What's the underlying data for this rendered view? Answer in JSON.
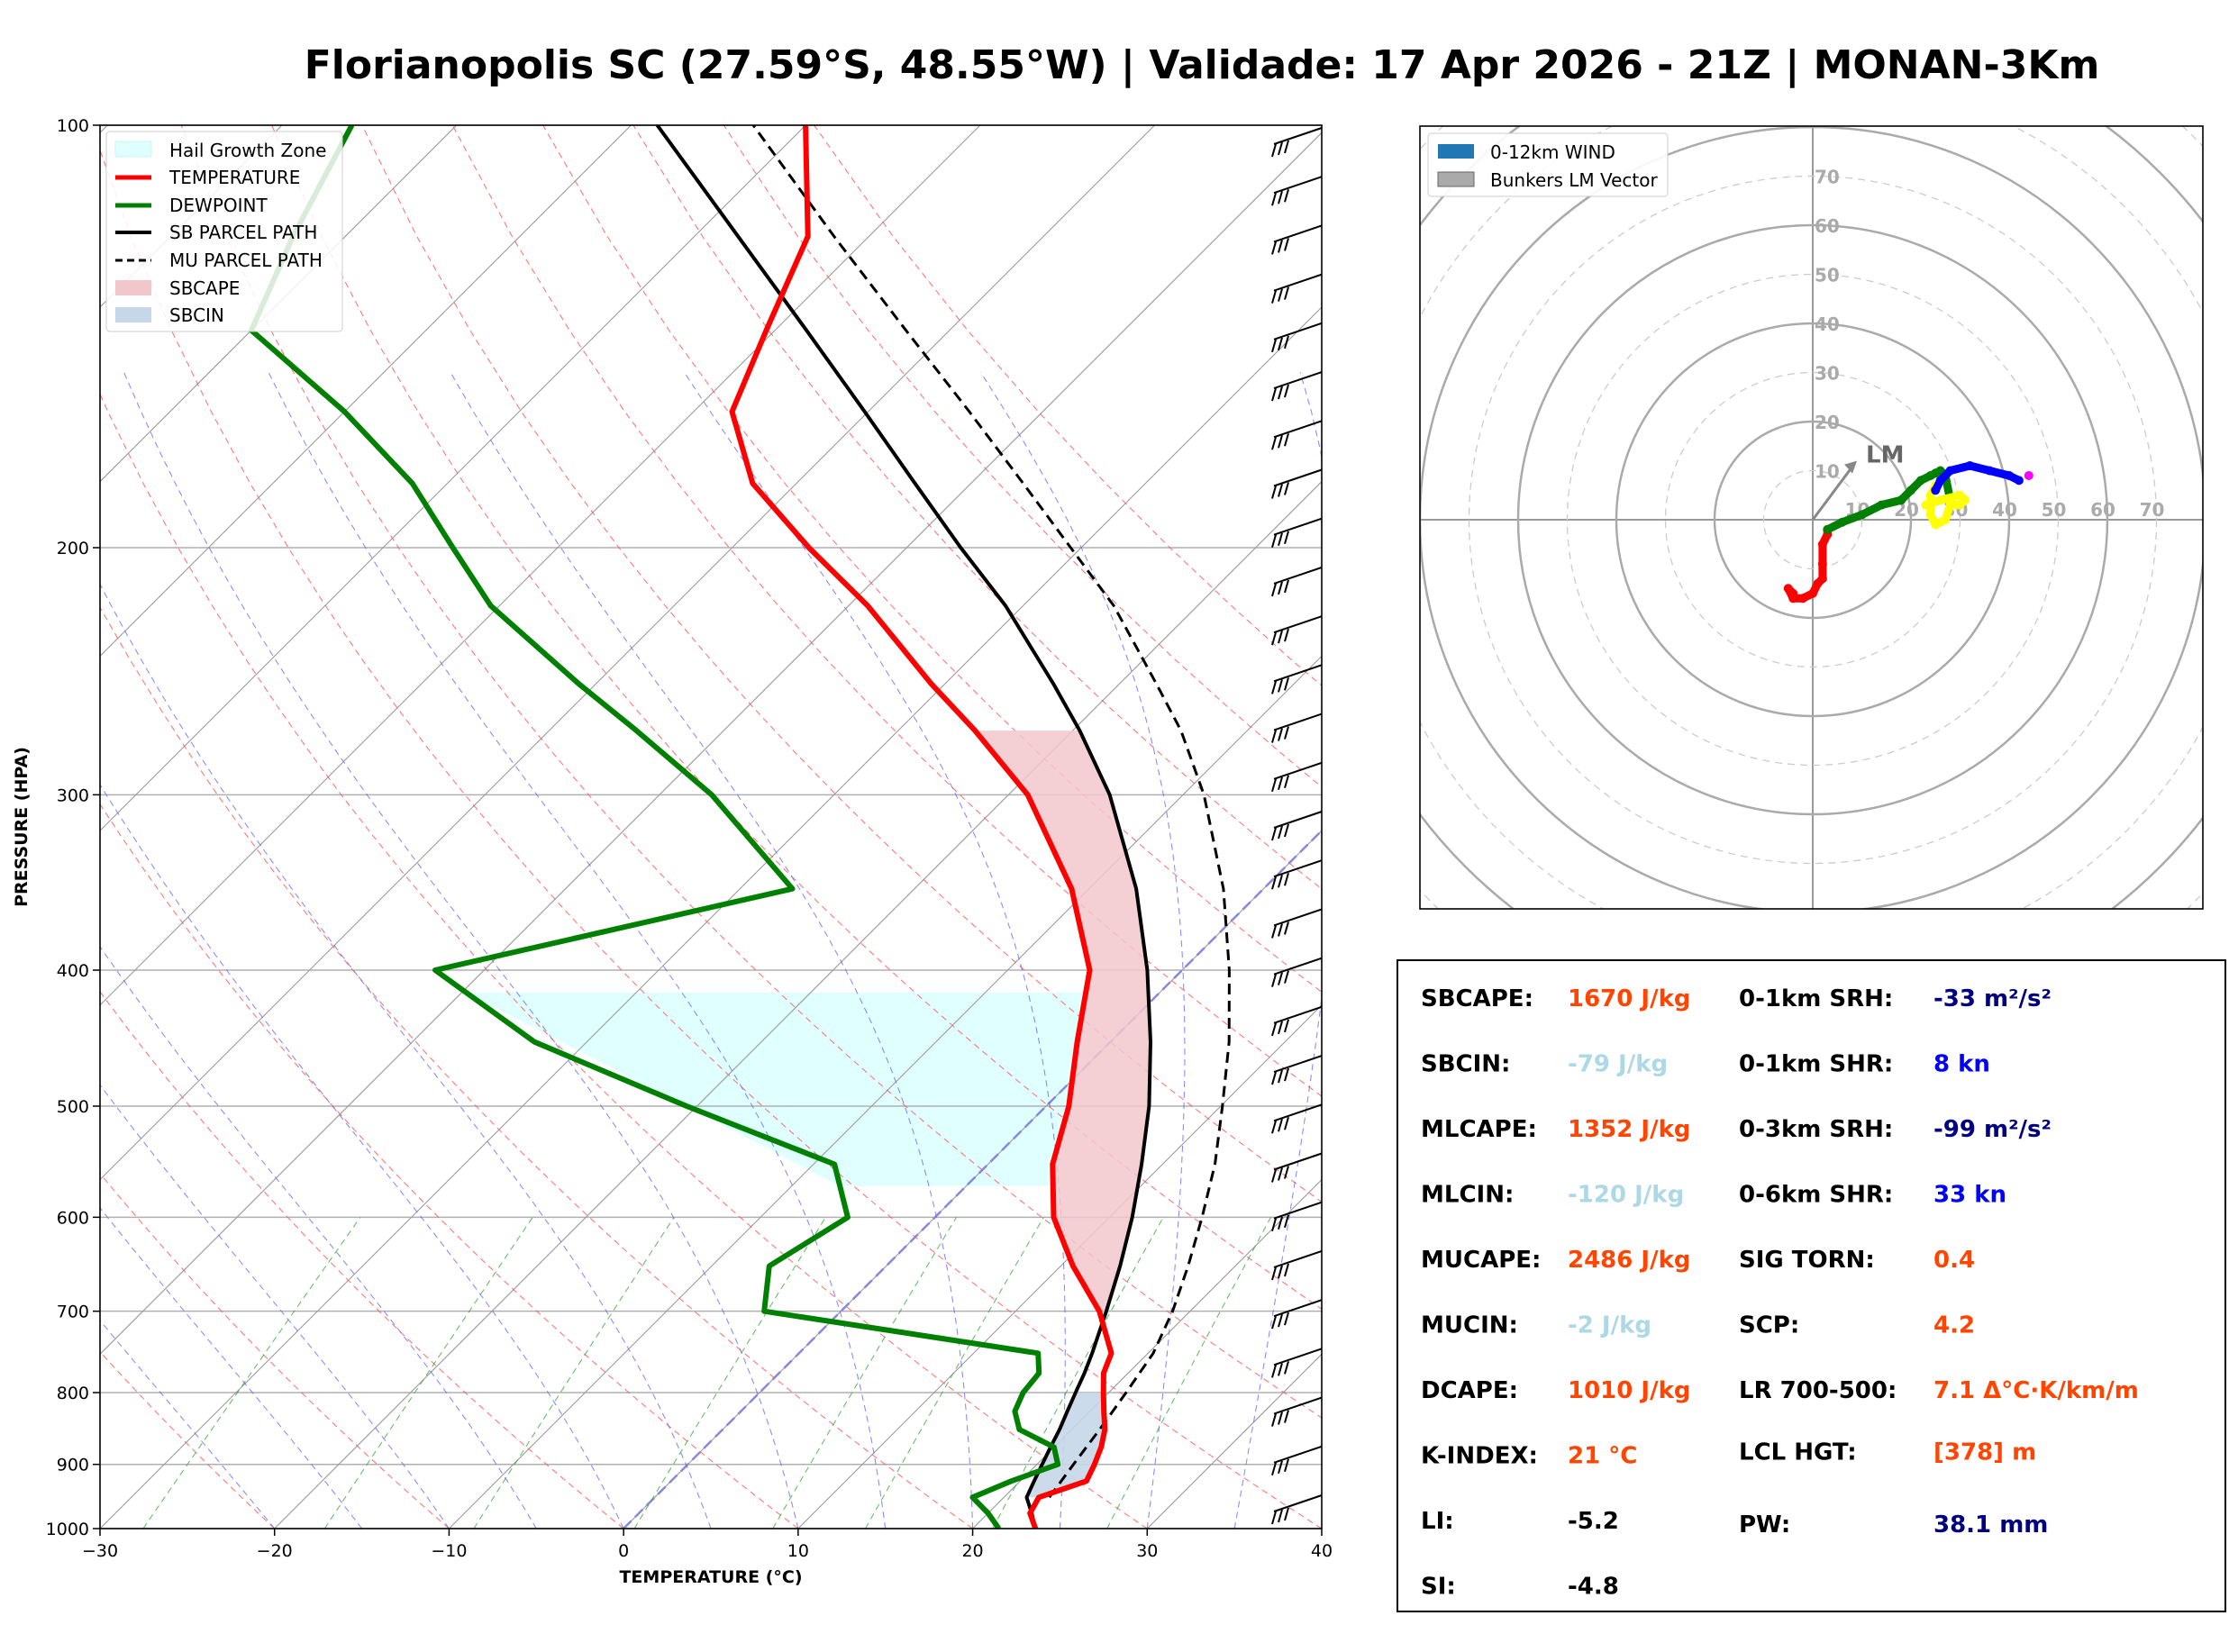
{
  "title": "Florianopolis SC (27.59°S, 48.55°W) | Validade: 17 Apr 2026 - 21Z | MONAN-3Km",
  "colors": {
    "temperature": "#ff0000",
    "dewpoint": "#008000",
    "sb_parcel": "#000000",
    "sbcape": "#f2c7cc",
    "sbcin": "#c5d7e8",
    "hail": "#e0ffff"
  },
  "chart_data": [
    {
      "type": "line",
      "name": "skew-t",
      "xlabel": "TEMPERATURE (°C)",
      "ylabel": "PRESSURE (HPA)",
      "xlim": [
        -30,
        40
      ],
      "ylim": [
        1000,
        100
      ],
      "skew": 45,
      "xticks": [
        "−30",
        "−20",
        "−10",
        "0",
        "10",
        "20",
        "30",
        "40"
      ],
      "xtick_values": [
        -30,
        -20,
        -10,
        0,
        10,
        20,
        30,
        40
      ],
      "yticks": [
        "100",
        "200",
        "300",
        "400",
        "500",
        "600",
        "700",
        "800",
        "900",
        "1000"
      ],
      "ytick_values": [
        100,
        200,
        300,
        400,
        500,
        600,
        700,
        800,
        900,
        1000
      ],
      "legend": [
        "Hail Growth Zone",
        "TEMPERATURE",
        "DEWPOINT",
        "SB PARCEL PATH",
        "MU PARCEL PATH",
        "SBCAPE",
        "SBCIN"
      ],
      "series": [
        {
          "name": "TEMPERATURE",
          "p": [
            1000,
            975,
            950,
            925,
            900,
            875,
            850,
            825,
            800,
            775,
            750,
            700,
            650,
            600,
            550,
            500,
            450,
            400,
            350,
            300,
            270,
            250,
            220,
            200,
            180,
            160,
            140,
            120,
            100
          ],
          "t": [
            23.6,
            22.4,
            22.0,
            23.8,
            23.3,
            22.7,
            21.9,
            20.8,
            19.7,
            18.6,
            17.9,
            14.8,
            10.7,
            6.8,
            3.7,
            1.3,
            -1.9,
            -5.3,
            -11.0,
            -18.9,
            -25.6,
            -30.8,
            -38.9,
            -45.6,
            -52.5,
            -57.8,
            -60.5,
            -63.5,
            -70.0
          ]
        },
        {
          "name": "DEWPOINT",
          "p": [
            1000,
            975,
            950,
            925,
            900,
            875,
            850,
            825,
            800,
            775,
            750,
            700,
            650,
            600,
            550,
            500,
            450,
            400,
            350,
            300,
            270,
            250,
            220,
            200,
            180,
            160,
            140,
            120,
            100
          ],
          "td": [
            21.5,
            20.0,
            18.2,
            19.5,
            21.2,
            20.0,
            17.0,
            15.7,
            15.1,
            14.9,
            13.7,
            -4.4,
            -6.7,
            -5.0,
            -8.8,
            -20.6,
            -33.0,
            -42.8,
            -27.0,
            -37.0,
            -45.0,
            -51.0,
            -60.5,
            -66.0,
            -72.0,
            -80.0,
            -90.0,
            -93.0,
            -96.0
          ]
        },
        {
          "name": "SB PARCEL PATH",
          "p": [
            1000,
            975,
            950,
            925,
            900,
            875,
            850,
            825,
            800,
            775,
            750,
            700,
            650,
            600,
            550,
            500,
            450,
            400,
            350,
            300,
            270,
            250,
            220,
            200,
            180,
            160,
            140,
            120,
            100
          ],
          "t": [
            23.6,
            22.5,
            21.3,
            20.8,
            20.3,
            19.8,
            19.3,
            18.7,
            18.1,
            17.5,
            16.8,
            15.2,
            13.4,
            11.3,
            8.8,
            5.9,
            2.3,
            -2.0,
            -7.3,
            -14.2,
            -19.6,
            -23.8,
            -31.0,
            -36.9,
            -43.2,
            -50.2,
            -58.2,
            -67.5,
            -78.5
          ]
        },
        {
          "name": "MU PARCEL PATH",
          "p": [
            950,
            900,
            850,
            800,
            750,
            700,
            650,
            600,
            550,
            500,
            450,
            400,
            350,
            300,
            270,
            250,
            220,
            200,
            180,
            160,
            140,
            120,
            100
          ],
          "t": [
            22.6,
            22.1,
            21.6,
            21.0,
            20.3,
            19.0,
            17.3,
            15.3,
            13.0,
            10.1,
            6.8,
            2.7,
            -2.3,
            -8.8,
            -13.8,
            -17.9,
            -24.8,
            -30.6,
            -37.0,
            -44.2,
            -52.5,
            -62.0,
            -73.0
          ]
        }
      ],
      "hail_growth_zone": {
        "p_bottom": 570,
        "p_top": 415
      },
      "wind_barbs_count": 29
    },
    {
      "type": "scatter",
      "name": "hodograph",
      "legend": [
        "0-12km WIND",
        "Bunkers LM Vector"
      ],
      "ring_labels": [
        "10",
        "20",
        "30",
        "40",
        "50",
        "60",
        "70"
      ],
      "storm_motion_label": "LM",
      "lm_vector": {
        "u": 9,
        "v": 12
      },
      "segments": [
        {
          "name": "0-3km",
          "color": "#ff0000",
          "u": [
            -4,
            -5,
            -4,
            -2,
            0,
            1,
            2,
            2,
            2,
            3,
            3
          ],
          "v": [
            -15,
            -14,
            -16,
            -16,
            -15,
            -13,
            -12,
            -9,
            -5,
            -3,
            -2
          ]
        },
        {
          "name": "3-6km",
          "color": "#008000",
          "u": [
            3,
            6,
            10,
            14,
            18,
            20,
            22,
            24,
            25,
            26,
            27,
            28
          ],
          "v": [
            -2,
            -0.5,
            1,
            3,
            4,
            6,
            8,
            9,
            9.5,
            10,
            9,
            4
          ]
        },
        {
          "name": "6-9km",
          "color": "#ffff00",
          "u": [
            25,
            24,
            24,
            25,
            26,
            27,
            28,
            30,
            31,
            30,
            26,
            23
          ],
          "v": [
            7,
            5,
            1,
            -1,
            -0.5,
            0,
            3,
            3,
            4,
            5,
            4,
            3
          ]
        },
        {
          "name": "9-12km",
          "color": "#0000ff",
          "u": [
            25,
            26,
            28,
            32,
            36,
            40,
            42
          ],
          "v": [
            6,
            8,
            10,
            11,
            10,
            9,
            8
          ]
        },
        {
          "name": "top",
          "color": "#ff00ff",
          "u": [
            44
          ],
          "v": [
            9
          ]
        }
      ]
    }
  ],
  "indices": {
    "left": [
      {
        "label": "SBCAPE:",
        "value": "1670 J/kg",
        "color": "#ff4500"
      },
      {
        "label": "SBCIN:",
        "value": "-79 J/kg",
        "color": "#add8e6"
      },
      {
        "label": "MLCAPE:",
        "value": "1352 J/kg",
        "color": "#ff4500"
      },
      {
        "label": "MLCIN:",
        "value": "-120 J/kg",
        "color": "#add8e6"
      },
      {
        "label": "MUCAPE:",
        "value": "2486 J/kg",
        "color": "#ff4500"
      },
      {
        "label": "MUCIN:",
        "value": "-2 J/kg",
        "color": "#add8e6"
      },
      {
        "label": "DCAPE:",
        "value": "1010 J/kg",
        "color": "#ff4500"
      },
      {
        "label": "K-INDEX:",
        "value": "21 °C",
        "color": "#ff4500"
      },
      {
        "label": "LI:",
        "value": "-5.2",
        "color": "#000000"
      },
      {
        "label": "SI:",
        "value": "-4.8",
        "color": "#000000"
      }
    ],
    "right": [
      {
        "label": "0-1km SRH:",
        "value": "-33 m²/s²",
        "color": "#000080"
      },
      {
        "label": "0-1km SHR:",
        "value": "8 kn",
        "color": "#0000ff"
      },
      {
        "label": "0-3km SRH:",
        "value": "-99 m²/s²",
        "color": "#000080"
      },
      {
        "label": "0-6km SHR:",
        "value": "33 kn",
        "color": "#0000ff"
      },
      {
        "label": "SIG TORN:",
        "value": "0.4",
        "color": "#ff4500"
      },
      {
        "label": "SCP:",
        "value": "4.2",
        "color": "#ff4500"
      },
      {
        "label": "LR 700-500:",
        "value": "7.1 Δ°C·K/km/m",
        "color": "#ff4500"
      },
      {
        "label": "LCL HGT:",
        "value": "[378] m",
        "color": "#ff4500"
      },
      {
        "label": "PW:",
        "value": "38.1 mm",
        "color": "#000080"
      }
    ]
  }
}
